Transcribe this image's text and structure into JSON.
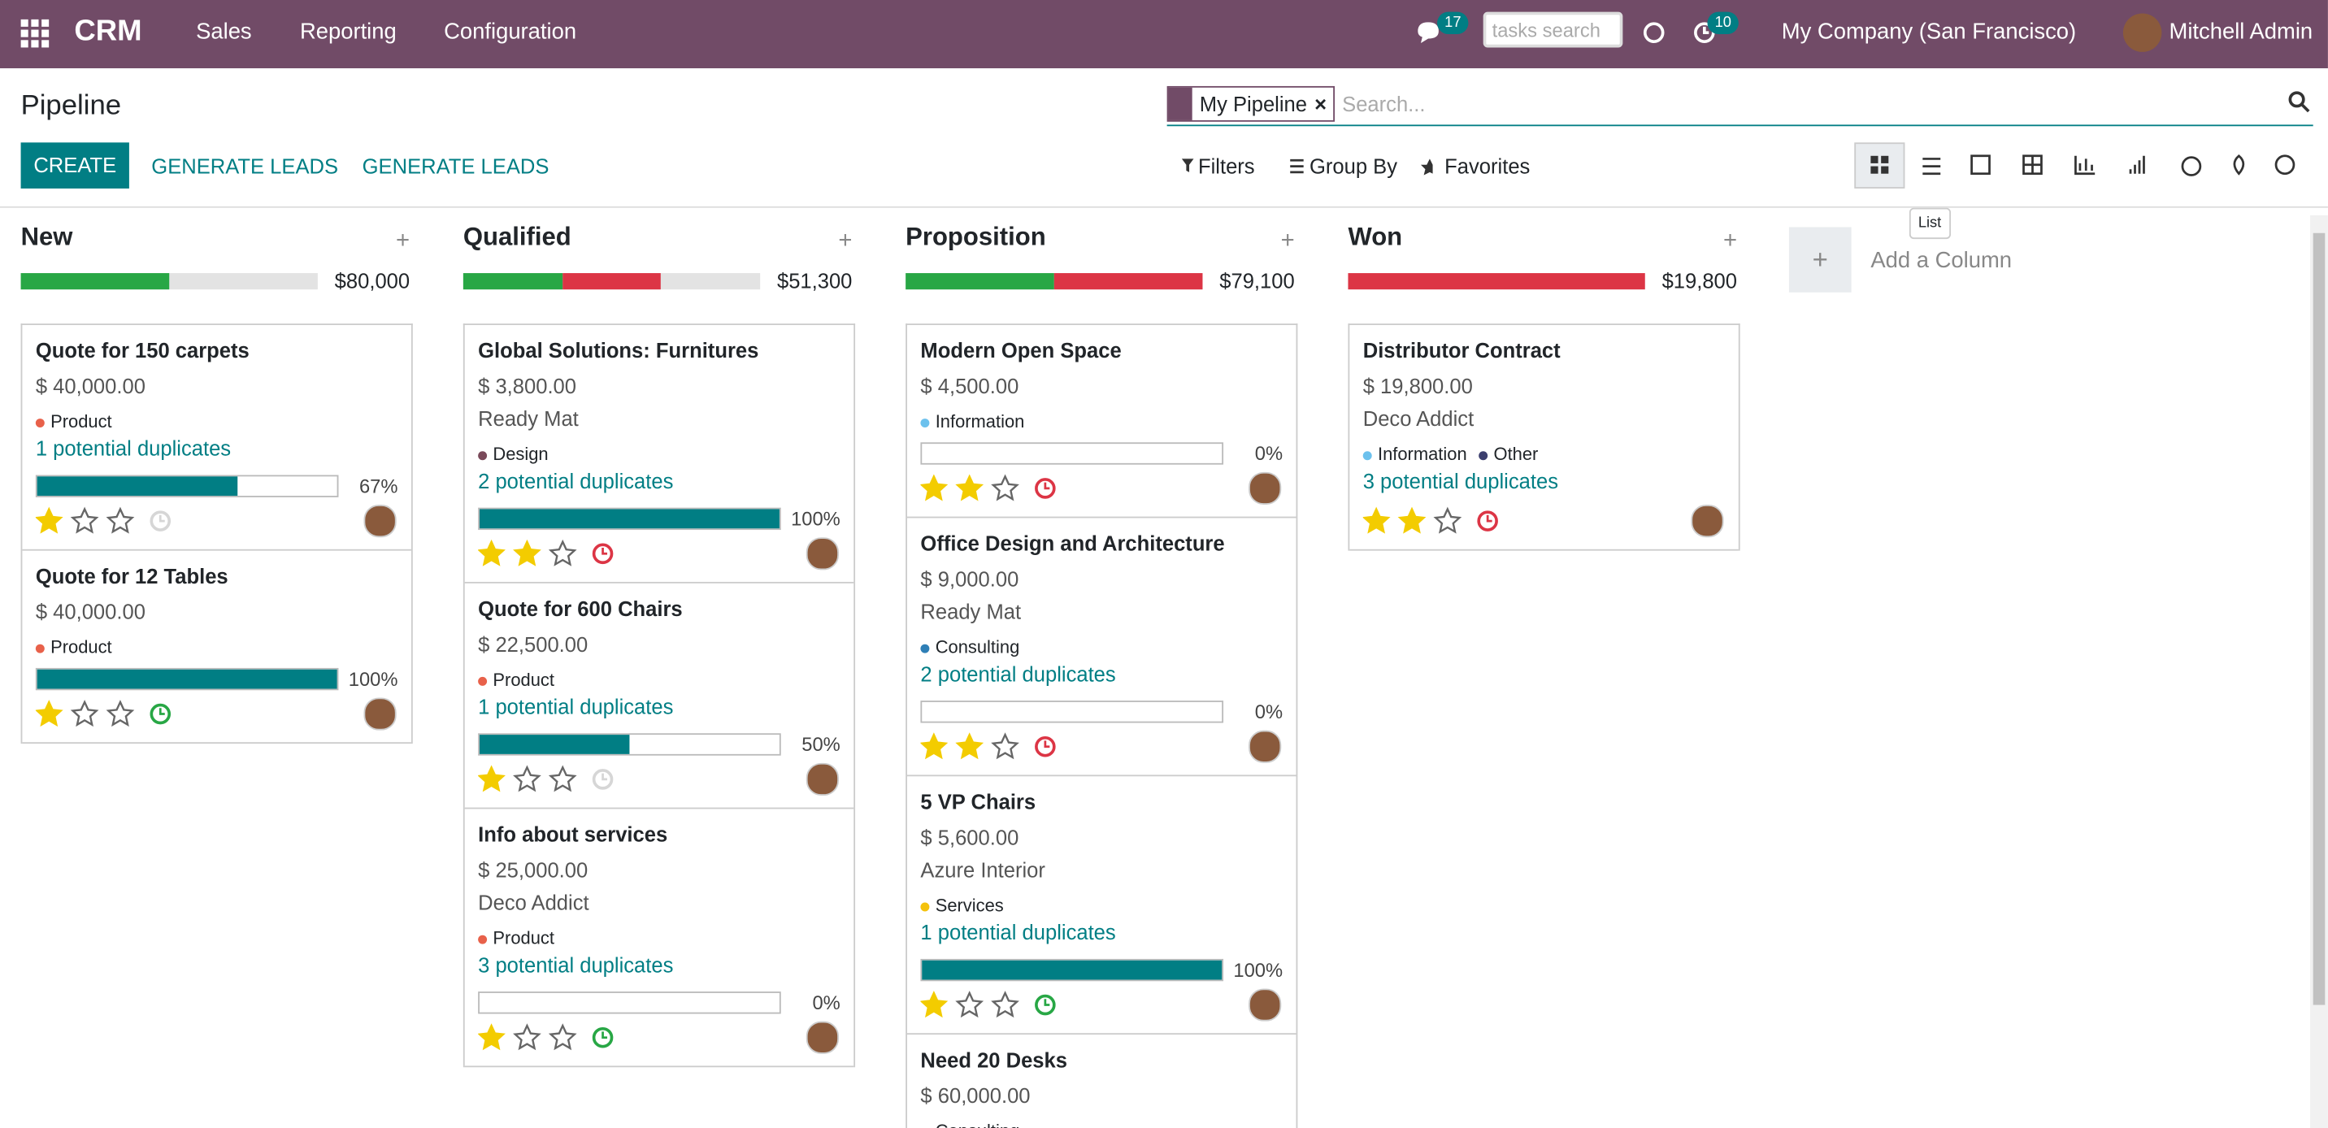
{
  "navbar": {
    "app": "CRM",
    "menu": [
      "Sales",
      "Reporting",
      "Configuration"
    ],
    "messages_badge": "17",
    "tasks_search_placeholder": "tasks search",
    "activities_badge": "10",
    "company": "My Company (San Francisco)",
    "user": "Mitchell Admin"
  },
  "control_panel": {
    "title": "Pipeline",
    "facet": "My Pipeline",
    "search_placeholder": "Search...",
    "buttons": [
      "CREATE",
      "GENERATE LEADS",
      "GENERATE LEADS"
    ],
    "filters": "Filters",
    "group_by": "Group By",
    "favorites": "Favorites",
    "tooltip": "List"
  },
  "columns": [
    {
      "title": "New",
      "total": "$80,000",
      "segments": [
        {
          "color": "#28a745",
          "share": 50
        }
      ],
      "cards": [
        {
          "name": "Quote for 150 carpets",
          "amount": "$ 40,000.00",
          "tags": [
            {
              "name": "Product",
              "color": "#e8614a"
            }
          ],
          "duplicates": "1 potential duplicates",
          "progress": {
            "value": 67,
            "label": "67%"
          },
          "priority": 1,
          "activity_color": "#d6d6d6"
        },
        {
          "name": "Quote for 12 Tables",
          "amount": "$ 40,000.00",
          "tags": [
            {
              "name": "Product",
              "color": "#e8614a"
            }
          ],
          "progress": {
            "value": 100,
            "label": "100%"
          },
          "priority": 1,
          "activity_color": "#28a745"
        }
      ]
    },
    {
      "title": "Qualified",
      "total": "$51,300",
      "segments": [
        {
          "color": "#28a745",
          "share": 33.5
        },
        {
          "color": "#dc3545",
          "share": 33
        }
      ],
      "cards": [
        {
          "name": "Global Solutions: Furnitures",
          "amount": "$ 3,800.00",
          "partner": "Ready Mat",
          "tags": [
            {
              "name": "Design",
              "color": "#7a4a5a"
            }
          ],
          "duplicates": "2 potential duplicates",
          "progress": {
            "value": 100,
            "label": "100%"
          },
          "priority": 2,
          "activity_color": "#dc3545"
        },
        {
          "name": "Quote for 600 Chairs",
          "amount": "$ 22,500.00",
          "tags": [
            {
              "name": "Product",
              "color": "#e8614a"
            }
          ],
          "duplicates": "1 potential duplicates",
          "progress": {
            "value": 50,
            "label": "50%"
          },
          "priority": 1,
          "activity_color": "#d6d6d6"
        },
        {
          "name": "Info about services",
          "amount": "$ 25,000.00",
          "partner": "Deco Addict",
          "tags": [
            {
              "name": "Product",
              "color": "#e8614a"
            }
          ],
          "duplicates": "3 potential duplicates",
          "progress": {
            "value": 0,
            "label": "0%"
          },
          "priority": 1,
          "activity_color": "#28a745"
        }
      ]
    },
    {
      "title": "Proposition",
      "total": "$79,100",
      "segments": [
        {
          "color": "#28a745",
          "share": 50
        },
        {
          "color": "#dc3545",
          "share": 50
        }
      ],
      "cards": [
        {
          "name": "Modern Open Space",
          "amount": "$ 4,500.00",
          "tags": [
            {
              "name": "Information",
              "color": "#6cc1ed"
            }
          ],
          "progress": {
            "value": 0,
            "label": "0%"
          },
          "priority": 2,
          "activity_color": "#dc3545"
        },
        {
          "name": "Office Design and Architecture",
          "amount": "$ 9,000.00",
          "partner": "Ready Mat",
          "tags": [
            {
              "name": "Consulting",
              "color": "#2e7fb6"
            }
          ],
          "duplicates": "2 potential duplicates",
          "progress": {
            "value": 0,
            "label": "0%"
          },
          "priority": 2,
          "activity_color": "#dc3545"
        },
        {
          "name": "5 VP Chairs",
          "amount": "$ 5,600.00",
          "partner": "Azure Interior",
          "tags": [
            {
              "name": "Services",
              "color": "#f4c20d"
            }
          ],
          "duplicates": "1 potential duplicates",
          "progress": {
            "value": 100,
            "label": "100%"
          },
          "priority": 1,
          "activity_color": "#28a745"
        },
        {
          "name": "Need 20 Desks",
          "amount": "$ 60,000.00",
          "tags": [
            {
              "name": "Consulting",
              "color": "#2e7fb6"
            }
          ]
        }
      ]
    },
    {
      "title": "Won",
      "total": "$19,800",
      "segments": [
        {
          "color": "#dc3545",
          "share": 100
        }
      ],
      "cards": [
        {
          "name": "Distributor Contract",
          "amount": "$ 19,800.00",
          "partner": "Deco Addict",
          "tags": [
            {
              "name": "Information",
              "color": "#6cc1ed"
            },
            {
              "name": "Other",
              "color": "#3c3f6e"
            }
          ],
          "duplicates": "3 potential duplicates",
          "priority": 2,
          "activity_color": "#dc3545"
        }
      ]
    }
  ],
  "add_column": "Add a Column"
}
